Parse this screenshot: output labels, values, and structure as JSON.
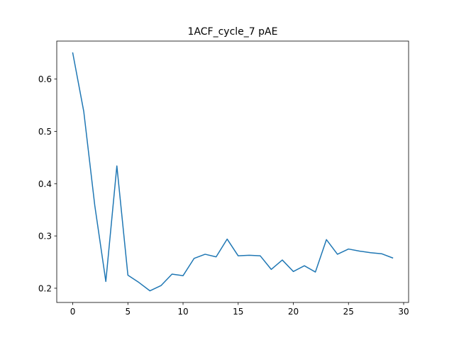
{
  "chart_data": {
    "type": "line",
    "title": "1ACF_cycle_7 pAE",
    "xlabel": "",
    "ylabel": "",
    "xlim": [
      -1.45,
      30.45
    ],
    "ylim": [
      0.1728,
      0.6727
    ],
    "xticks": [
      0,
      5,
      10,
      15,
      20,
      25,
      30
    ],
    "yticks": [
      0.2,
      0.3,
      0.4,
      0.5,
      0.6
    ],
    "grid": false,
    "legend": "none",
    "series": [
      {
        "color": "#1f77b4",
        "x": [
          0,
          1,
          2,
          3,
          4,
          5,
          6,
          7,
          8,
          9,
          10,
          11,
          12,
          13,
          14,
          15,
          16,
          17,
          18,
          19,
          20,
          21,
          22,
          23,
          24,
          25,
          26,
          27,
          28,
          29
        ],
        "values": [
          0.65,
          0.538,
          0.358,
          0.213,
          0.434,
          0.225,
          0.211,
          0.195,
          0.205,
          0.227,
          0.224,
          0.257,
          0.265,
          0.26,
          0.294,
          0.262,
          0.263,
          0.262,
          0.236,
          0.254,
          0.232,
          0.243,
          0.231,
          0.293,
          0.265,
          0.275,
          0.271,
          0.268,
          0.266,
          0.258
        ]
      }
    ]
  }
}
